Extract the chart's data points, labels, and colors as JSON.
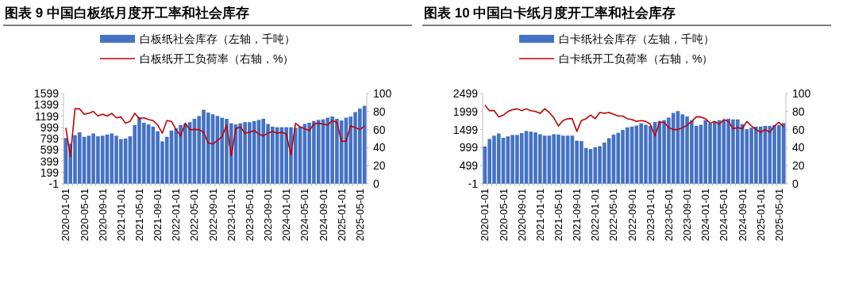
{
  "chart_data": [
    {
      "type": "bar",
      "title": "图表 9 中国白板纸月度开工率和社会库存",
      "categories": [
        "2020-01-01",
        null,
        null,
        null,
        "2020-05-01",
        null,
        null,
        null,
        "2020-09-01",
        null,
        null,
        null,
        "2021-01-01",
        null,
        null,
        null,
        "2021-05-01",
        null,
        null,
        null,
        "2021-09-01",
        null,
        null,
        null,
        "2022-01-01",
        null,
        null,
        null,
        "2022-05-01",
        null,
        null,
        null,
        "2022-09-01",
        null,
        null,
        null,
        "2023-01-01",
        null,
        null,
        null,
        "2023-05-01",
        null,
        null,
        null,
        "2023-09-01",
        null,
        null,
        null,
        "2024-01-01",
        null,
        null,
        null,
        "2024-05-01",
        null,
        null,
        null,
        "2024-09-01",
        null,
        null,
        null,
        "2025-01-01",
        null,
        null,
        null,
        "2025-05-01",
        null
      ],
      "series": [
        {
          "name": "白板纸社会库存（左轴，千吨）",
          "color": "#4472c4",
          "values": [
            810,
            710,
            860,
            910,
            830,
            850,
            890,
            840,
            850,
            870,
            890,
            850,
            790,
            800,
            840,
            1040,
            1180,
            1080,
            1050,
            1010,
            930,
            750,
            830,
            940,
            980,
            1040,
            1060,
            1090,
            1150,
            1200,
            1310,
            1260,
            1230,
            1200,
            1170,
            1150,
            1070,
            1050,
            1070,
            1090,
            1090,
            1110,
            1130,
            1150,
            1060,
            1010,
            1000,
            1000,
            1000,
            1000,
            990,
            1010,
            1060,
            1080,
            1110,
            1130,
            1140,
            1170,
            1190,
            1150,
            1120,
            1170,
            1190,
            1270,
            1330,
            1380
          ]
        },
        {
          "name": "白板纸开工负荷率（右轴，%）",
          "type": "line",
          "axis": "y2",
          "color": "#c00000",
          "values": [
            62,
            30,
            83,
            83,
            77,
            78,
            80,
            75,
            77,
            75,
            78,
            73,
            74,
            67,
            69,
            78,
            72,
            73,
            71,
            70,
            65,
            56,
            70,
            69,
            60,
            53,
            67,
            60,
            60,
            60,
            57,
            45,
            44,
            48,
            52,
            65,
            31,
            61,
            63,
            56,
            57,
            59,
            55,
            53,
            56,
            58,
            56,
            57,
            55,
            32,
            67,
            63,
            61,
            59,
            66,
            67,
            66,
            65,
            70,
            68,
            47,
            47,
            64,
            62,
            60,
            64
          ]
        }
      ],
      "ylim": [
        -1,
        1599
      ],
      "yticks": [
        -1,
        199,
        399,
        599,
        799,
        999,
        1199,
        1399,
        1599
      ],
      "y2lim": [
        0,
        100
      ],
      "y2ticks": [
        0,
        20,
        40,
        60,
        80,
        100
      ],
      "legend": "top"
    },
    {
      "type": "bar",
      "title": "图表 10 中国白卡纸月度开工率和社会库存",
      "categories": [
        "2020-01-01",
        null,
        null,
        null,
        "2020-05-01",
        null,
        null,
        null,
        "2020-09-01",
        null,
        null,
        null,
        "2021-01-01",
        null,
        null,
        null,
        "2021-05-01",
        null,
        null,
        null,
        "2021-09-01",
        null,
        null,
        null,
        "2022-01-01",
        null,
        null,
        null,
        "2022-05-01",
        null,
        null,
        null,
        "2022-09-01",
        null,
        null,
        null,
        "2023-01-01",
        null,
        null,
        null,
        "2023-05-01",
        null,
        null,
        null,
        "2023-09-01",
        null,
        null,
        null,
        "2024-01-01",
        null,
        null,
        null,
        "2024-05-01",
        null,
        null,
        null,
        "2024-09-01",
        null,
        null,
        null,
        "2025-01-01",
        null,
        null,
        null,
        "2025-05-01",
        null
      ],
      "series": [
        {
          "name": "白卡纸社会库存（左轴，千吨）",
          "color": "#4472c4",
          "values": [
            1030,
            1240,
            1330,
            1390,
            1270,
            1310,
            1350,
            1350,
            1400,
            1460,
            1440,
            1420,
            1370,
            1330,
            1330,
            1370,
            1360,
            1330,
            1330,
            1330,
            1190,
            1180,
            990,
            960,
            1010,
            1040,
            1140,
            1260,
            1360,
            1410,
            1490,
            1560,
            1580,
            1610,
            1670,
            1630,
            1600,
            1710,
            1740,
            1760,
            1830,
            1960,
            2010,
            1920,
            1860,
            1750,
            1600,
            1630,
            1760,
            1670,
            1720,
            1760,
            1760,
            1800,
            1780,
            1780,
            1650,
            1510,
            1550,
            1580,
            1580,
            1600,
            1600,
            1620,
            1620,
            1680
          ]
        },
        {
          "name": "白卡纸开工负荷率（右轴，%）",
          "type": "line",
          "axis": "y2",
          "color": "#c00000",
          "values": [
            87,
            81,
            81,
            74,
            76,
            80,
            82,
            83,
            81,
            83,
            81,
            80,
            78,
            83,
            79,
            73,
            64,
            70,
            72,
            72,
            58,
            70,
            72,
            76,
            72,
            79,
            78,
            79,
            77,
            75,
            75,
            72,
            71,
            69,
            70,
            69,
            66,
            53,
            68,
            68,
            62,
            60,
            60,
            62,
            65,
            69,
            74,
            74,
            72,
            67,
            69,
            66,
            71,
            69,
            61,
            62,
            61,
            69,
            64,
            60,
            57,
            60,
            57,
            64,
            68,
            63
          ]
        }
      ],
      "ylim": [
        -1,
        2499
      ],
      "yticks": [
        -1,
        499,
        999,
        1499,
        1999,
        2499
      ],
      "y2lim": [
        0,
        100
      ],
      "y2ticks": [
        0,
        20,
        40,
        60,
        80,
        100
      ],
      "legend": "top"
    }
  ]
}
